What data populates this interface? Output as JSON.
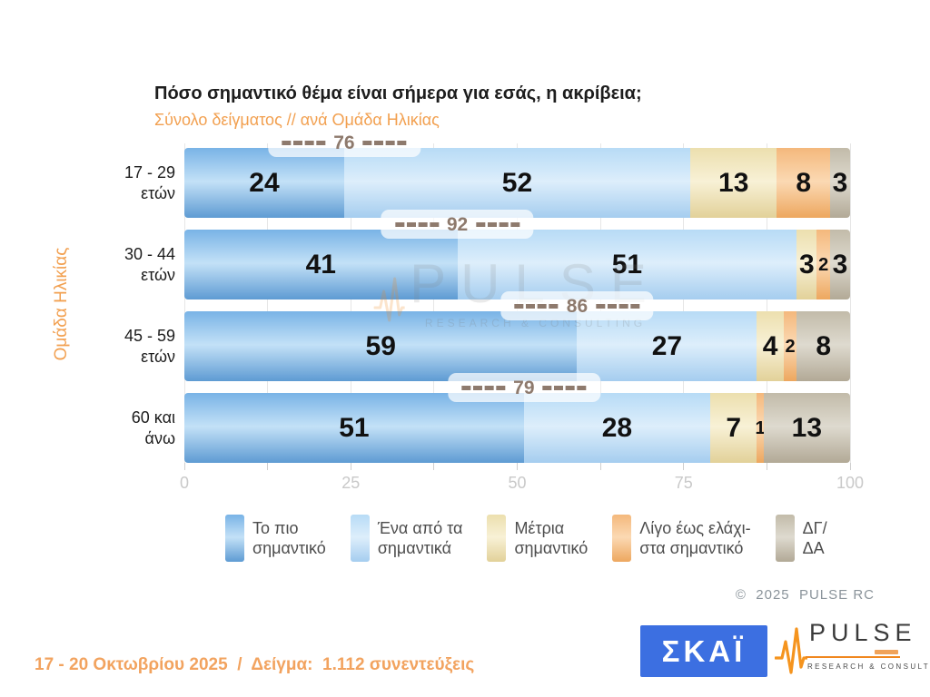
{
  "chart_data": {
    "type": "bar",
    "orientation": "horizontal-stacked",
    "title": "Πόσο σημαντικό θέμα είναι σήμερα για εσάς, η ακρίβεια;",
    "subtitle": "Σύνολο δείγματος // ανά Ομάδα Ηλικίας",
    "ylabel": "Ομάδα Ηλικίας",
    "categories": [
      "17 - 29 ετών",
      "30 - 44 ετών",
      "45 - 59 ετών",
      "60 και άνω"
    ],
    "category_lines": [
      [
        "17 - 29",
        "ετών"
      ],
      [
        "30 - 44",
        "ετών"
      ],
      [
        "45 - 59",
        "ετών"
      ],
      [
        "60 και",
        "άνω"
      ]
    ],
    "series": [
      {
        "name": "Το πιο σημαντικό",
        "values": [
          24,
          41,
          59,
          51
        ],
        "gradient": [
          "#79b3e6",
          "#c3e1f7",
          "#5e9bd3"
        ]
      },
      {
        "name": "Ένα από τα σημαντικά",
        "values": [
          52,
          51,
          27,
          28
        ],
        "gradient": [
          "#b7dbf6",
          "#ddeefb",
          "#a5cdef"
        ]
      },
      {
        "name": "Μέτρια σημαντικό",
        "values": [
          13,
          3,
          4,
          7
        ],
        "gradient": [
          "#ecdfae",
          "#f8f1d6",
          "#e2d199"
        ]
      },
      {
        "name": "Λίγο έως ελάχιστα σημαντικό",
        "values": [
          8,
          2,
          2,
          1
        ],
        "gradient": [
          "#f4b87c",
          "#fbd9b3",
          "#eda75f"
        ]
      },
      {
        "name": "ΔΓ/ΔΑ",
        "values": [
          3,
          3,
          8,
          13
        ],
        "gradient": [
          "#c2bba9",
          "#dedacf",
          "#b2a996"
        ]
      }
    ],
    "annotations": [
      76,
      92,
      86,
      79
    ],
    "xlim": [
      0,
      100
    ],
    "xticks": [
      0,
      25,
      50,
      75,
      100
    ],
    "gridline_step": 12.5,
    "grid": true,
    "legend_position": "bottom"
  },
  "legend": {
    "items": [
      {
        "line1": "Το πιο",
        "line2": "σημαντικό"
      },
      {
        "line1": "Ένα από τα",
        "line2": "σημαντικά"
      },
      {
        "line1": "Μέτρια",
        "line2": "σημαντικό"
      },
      {
        "line1": "Λίγο έως ελάχι-",
        "line2": "στα σημαντικό"
      },
      {
        "line1": "ΔΓ/",
        "line2": "ΔΑ"
      }
    ]
  },
  "watermark": {
    "name": "PULSE",
    "tagline": "RESEARCH & CONSULTING"
  },
  "footer": {
    "copyright": "©  2025  PULSE RC",
    "survey_info": "17 - 20 Οκτωβρίου 2025  /  Δείγμα:  1.112 συνεντεύξεις"
  },
  "logos": {
    "skai": "ΣΚΑΪ",
    "pulse_name": "PULSE",
    "pulse_tagline": "RESEARCH & CONSULTING"
  },
  "colors": {
    "accent_orange": "#f2a050",
    "annotation_brown": "#8e7a6d",
    "skai_blue": "#3c6fe1",
    "pulse_orange": "#f0871e",
    "tick_gray": "#c9c9c9"
  }
}
